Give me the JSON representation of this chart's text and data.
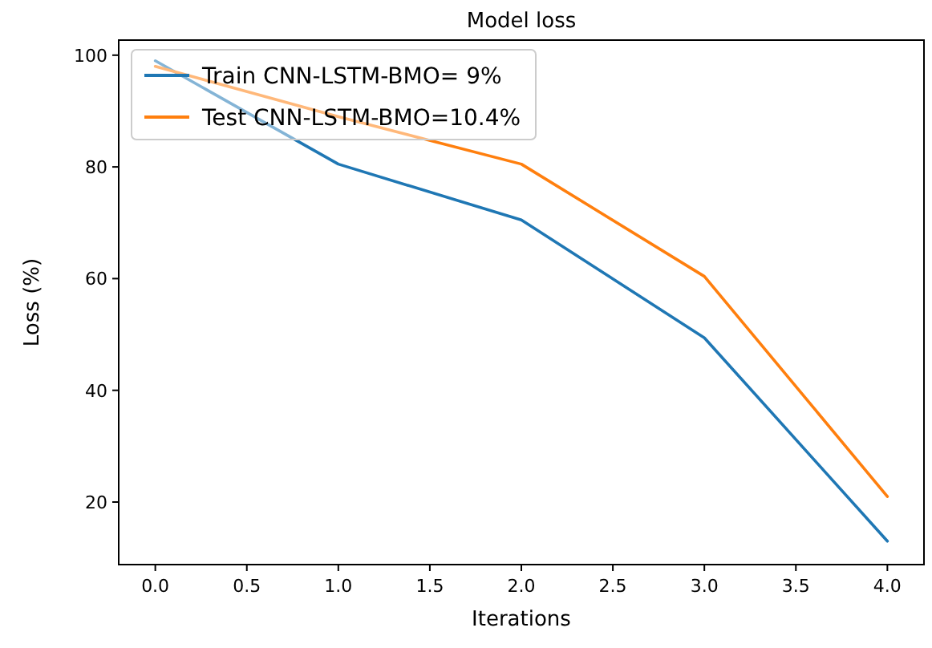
{
  "chart_data": {
    "type": "line",
    "title": "Model loss",
    "xlabel": "Iterations",
    "ylabel": "Loss (%)",
    "x": [
      0,
      1,
      2,
      3,
      4
    ],
    "series": [
      {
        "name": "Train CNN-LSTM-BMO= 9%",
        "color": "#1f77b4",
        "values": [
          99,
          80.5,
          70.5,
          49.4,
          13
        ]
      },
      {
        "name": "Test CNN-LSTM-BMO=10.4%",
        "color": "#ff7f0e",
        "values": [
          98,
          89,
          80.5,
          60.4,
          21
        ]
      }
    ],
    "xlim": [
      -0.2,
      4.2
    ],
    "xticks": [
      {
        "value": 0,
        "label": "0.0"
      },
      {
        "value": 0.5,
        "label": "0.5"
      },
      {
        "value": 1,
        "label": "1.0"
      },
      {
        "value": 1.5,
        "label": "1.5"
      },
      {
        "value": 2,
        "label": "2.0"
      },
      {
        "value": 2.5,
        "label": "2.5"
      },
      {
        "value": 3,
        "label": "3.0"
      },
      {
        "value": 3.5,
        "label": "3.5"
      },
      {
        "value": 4,
        "label": "4.0"
      }
    ],
    "ylim": [
      8.8,
      102.7
    ],
    "yticks": [
      20,
      40,
      60,
      80,
      100
    ],
    "legend": "top left",
    "grid": false,
    "marker": "none",
    "line_style": "solid"
  }
}
